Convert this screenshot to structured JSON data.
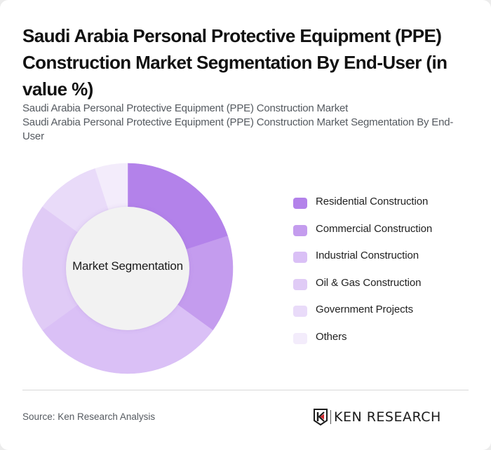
{
  "header": {
    "title": "Saudi Arabia Personal Protective Equipment (PPE) Construction Market Segmentation By End-User (in value %)",
    "subtitle_lines": [
      "Saudi Arabia Personal Protective Equipment (PPE) Construction Market",
      "Saudi Arabia Personal Protective Equipment (PPE) Construction Market Segmentation By End-User"
    ]
  },
  "chart": {
    "center_label": "Market Segmentation"
  },
  "legend": {
    "items": [
      {
        "label": "Residential Construction",
        "color": "#b382ea"
      },
      {
        "label": "Commercial Construction",
        "color": "#c49cee"
      },
      {
        "label": "Industrial Construction",
        "color": "#dac0f6"
      },
      {
        "label": "Oil & Gas Construction",
        "color": "#e0cbf6"
      },
      {
        "label": "Government Projects",
        "color": "#e9dbf9"
      },
      {
        "label": "Others",
        "color": "#f3ecfb"
      }
    ]
  },
  "footer": {
    "source": "Source: Ken Research Analysis",
    "logo_text": "KEN RESEARCH"
  },
  "chart_data": {
    "type": "pie",
    "subtype": "donut",
    "title": "Saudi Arabia Personal Protective Equipment (PPE) Construction Market Segmentation By End-User (in value %)",
    "center_label": "Market Segmentation",
    "categories": [
      "Residential Construction",
      "Commercial Construction",
      "Industrial Construction",
      "Oil & Gas Construction",
      "Government Projects",
      "Others"
    ],
    "values": [
      20,
      15,
      30,
      20,
      10,
      5
    ],
    "unit": "%",
    "colors": [
      "#b382ea",
      "#c49cee",
      "#dac0f6",
      "#e0cbf6",
      "#e9dbf9",
      "#f3ecfb"
    ],
    "start_angle": "12 o'clock, clockwise",
    "legend_position": "right",
    "data_labels": false
  }
}
